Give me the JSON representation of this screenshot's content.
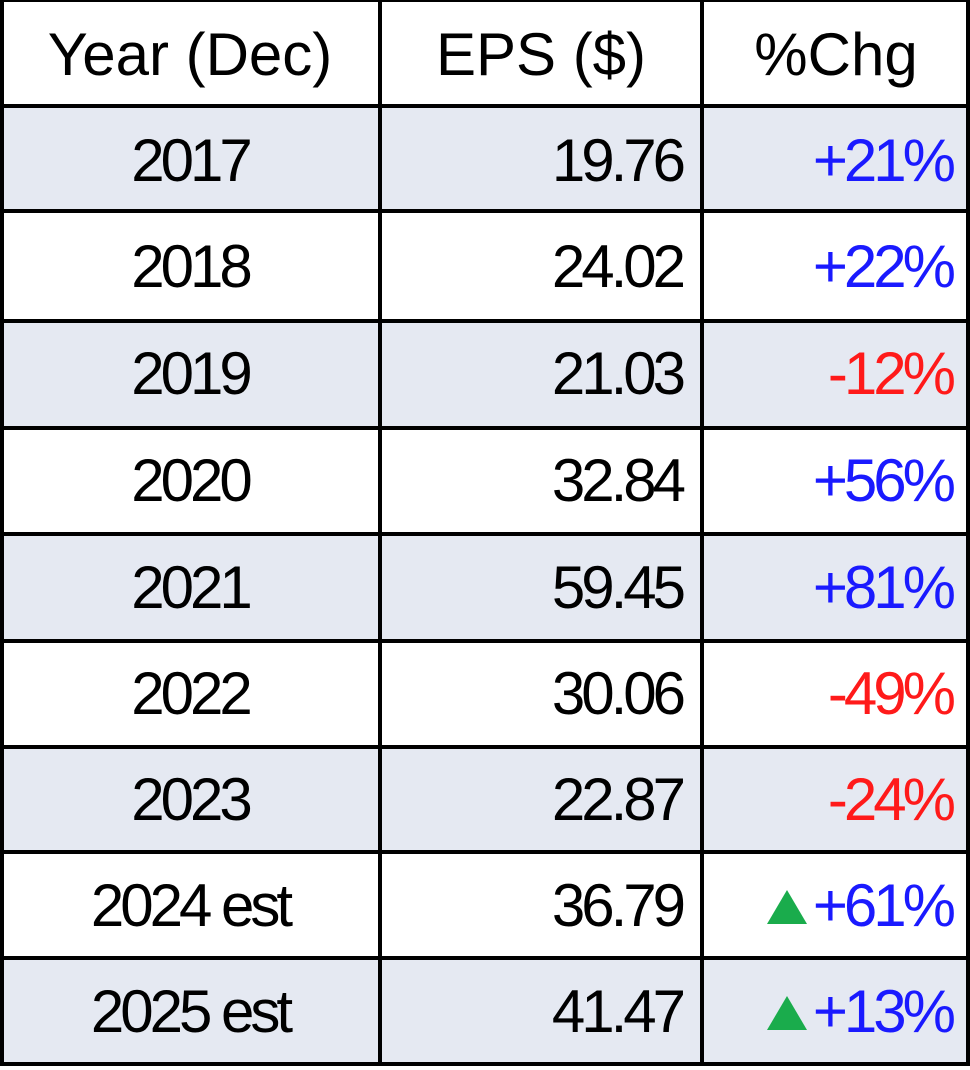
{
  "chart_data": {
    "type": "table",
    "columns": [
      "Year (Dec)",
      "EPS ($)",
      "%Chg"
    ],
    "rows": [
      {
        "year": "2017",
        "eps": "19.76",
        "chg": "+21%",
        "color": "#1a1aff",
        "arrow": false
      },
      {
        "year": "2018",
        "eps": "24.02",
        "chg": "+22%",
        "color": "#1a1aff",
        "arrow": false
      },
      {
        "year": "2019",
        "eps": "21.03",
        "chg": "-12%",
        "color": "#ff1a1a",
        "arrow": false
      },
      {
        "year": "2020",
        "eps": "32.84",
        "chg": "+56%",
        "color": "#1a1aff",
        "arrow": false
      },
      {
        "year": "2021",
        "eps": "59.45",
        "chg": "+81%",
        "color": "#1a1aff",
        "arrow": false
      },
      {
        "year": "2022",
        "eps": "30.06",
        "chg": "-49%",
        "color": "#ff1a1a",
        "arrow": false
      },
      {
        "year": "2023",
        "eps": "22.87",
        "chg": "-24%",
        "color": "#ff1a1a",
        "arrow": false
      },
      {
        "year": "2024 est",
        "eps": "36.79",
        "chg": "+61%",
        "color": "#1a1aff",
        "arrow": true
      },
      {
        "year": "2025 est",
        "eps": "41.47",
        "chg": "+13%",
        "color": "#1a1aff",
        "arrow": true
      }
    ],
    "colors": {
      "band": "#e5e9f2",
      "positive": "#1a1aff",
      "negative": "#ff1a1a",
      "arrow": "#1aac4c"
    }
  }
}
